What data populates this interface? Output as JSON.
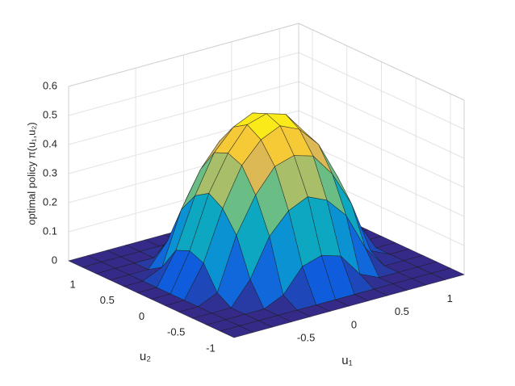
{
  "chart_data": {
    "type": "surface",
    "xlabel": "u₁",
    "ylabel": "u₂",
    "zlabel": "optimal policy π(u₁,u₂)",
    "x": [
      -1.2,
      -1.0,
      -0.8,
      -0.6,
      -0.4,
      -0.2,
      0,
      0.2,
      0.4,
      0.6,
      0.8,
      1.0,
      1.2
    ],
    "y": [
      -1.2,
      -1.0,
      -0.8,
      -0.6,
      -0.4,
      -0.2,
      0,
      0.2,
      0.4,
      0.6,
      0.8,
      1.0,
      1.2
    ],
    "z": [
      [
        0,
        0,
        0,
        0,
        0,
        0,
        0,
        0,
        0,
        0,
        0,
        0,
        0
      ],
      [
        0,
        0,
        0,
        0,
        0,
        0,
        0,
        0,
        0,
        0,
        0,
        0,
        0
      ],
      [
        0,
        0,
        0,
        0,
        0.03,
        0.11,
        0.13,
        0.11,
        0.03,
        0,
        0,
        0,
        0
      ],
      [
        0,
        0,
        0,
        0.08,
        0.21,
        0.28,
        0.31,
        0.28,
        0.21,
        0.08,
        0,
        0,
        0
      ],
      [
        0,
        0,
        0.03,
        0.21,
        0.33,
        0.41,
        0.43,
        0.41,
        0.33,
        0.21,
        0.03,
        0,
        0
      ],
      [
        0,
        0,
        0.11,
        0.28,
        0.41,
        0.48,
        0.51,
        0.48,
        0.41,
        0.28,
        0.11,
        0,
        0
      ],
      [
        0,
        0,
        0.13,
        0.31,
        0.43,
        0.51,
        0.53,
        0.51,
        0.43,
        0.31,
        0.13,
        0,
        0
      ],
      [
        0,
        0,
        0.11,
        0.28,
        0.41,
        0.48,
        0.51,
        0.48,
        0.41,
        0.28,
        0.11,
        0,
        0
      ],
      [
        0,
        0,
        0.03,
        0.21,
        0.33,
        0.41,
        0.43,
        0.41,
        0.33,
        0.21,
        0.03,
        0,
        0
      ],
      [
        0,
        0,
        0,
        0.08,
        0.21,
        0.28,
        0.31,
        0.28,
        0.21,
        0.08,
        0,
        0,
        0
      ],
      [
        0,
        0,
        0,
        0,
        0.03,
        0.11,
        0.13,
        0.11,
        0.03,
        0,
        0,
        0,
        0
      ],
      [
        0,
        0,
        0,
        0,
        0,
        0,
        0,
        0,
        0,
        0,
        0,
        0,
        0
      ],
      [
        0,
        0,
        0,
        0,
        0,
        0,
        0,
        0,
        0,
        0,
        0,
        0,
        0
      ]
    ],
    "xlim": [
      -1.2,
      1.2
    ],
    "ylim": [
      -1.2,
      1.2
    ],
    "zlim": [
      0,
      0.6
    ],
    "xticks": [
      -0.5,
      0,
      0.5,
      1
    ],
    "yticks": [
      -1,
      -0.5,
      0,
      0.5,
      1
    ],
    "zticks": [
      0,
      0.1,
      0.2,
      0.3,
      0.4,
      0.5,
      0.6
    ],
    "grid": true,
    "colormap": "parula"
  }
}
